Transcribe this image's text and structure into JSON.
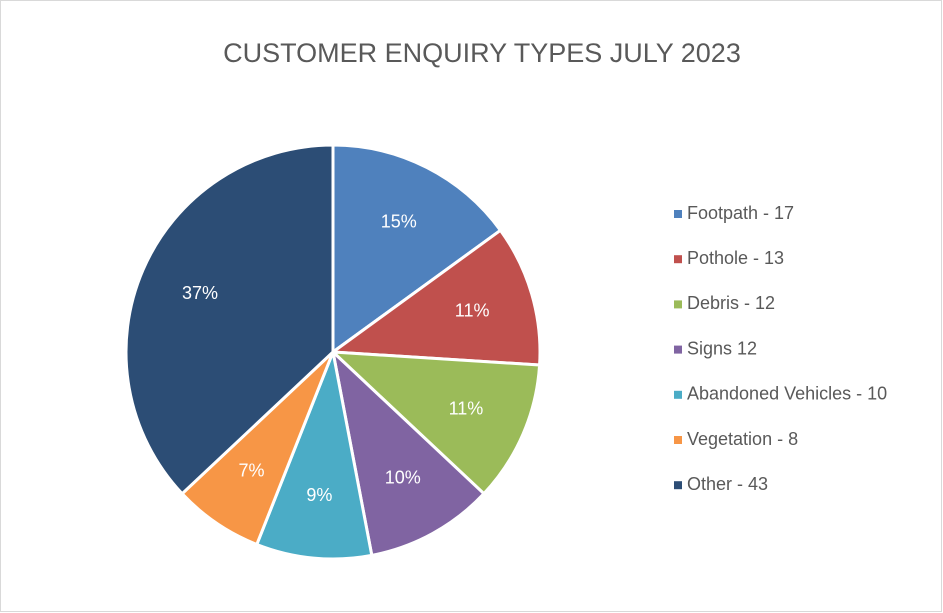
{
  "chart_data": {
    "type": "pie",
    "title": "CUSTOMER ENQUIRY TYPES JULY 2023",
    "categories": [
      "Footpath - 17",
      "Pothole - 13",
      "Debris - 12",
      "Signs  12",
      "Abandoned Vehicles - 10",
      "Vegetation - 8",
      "Other - 43"
    ],
    "values": [
      15,
      11,
      11,
      10,
      9,
      7,
      37
    ],
    "value_labels": [
      "15%",
      "11%",
      "11%",
      "10%",
      "9%",
      "7%",
      "37%"
    ],
    "colors": [
      "#4f81bd",
      "#c0504d",
      "#9bbb59",
      "#8064a2",
      "#4bacc6",
      "#f79646",
      "#2c4d75"
    ],
    "legend": "right"
  }
}
